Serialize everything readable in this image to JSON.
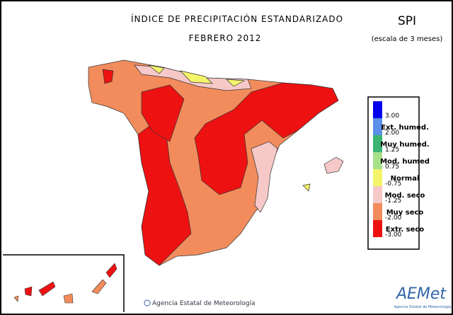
{
  "header": {
    "title": "ÍNDICE DE PRECIPITACIÓN ESTANDARIZADO",
    "subtitle": "FEBRERO 2012",
    "index": "SPI",
    "scale": "(escala de 3 meses)"
  },
  "legend": {
    "colors": [
      "#0000ee",
      "#5b8fe8",
      "#3cb371",
      "#a8e08a",
      "#f4f46a",
      "#f6c8c8",
      "#f28c5c",
      "#ee1111"
    ],
    "class_labels": [
      null,
      "Ext. humed.",
      "Muy humed.",
      "Mod. humed",
      "Normal",
      "Mod. seco",
      "Muy seco",
      "Extr. seco"
    ],
    "thresholds": [
      "3.00",
      "2.00",
      "1.25",
      "0.75",
      "-0.75",
      "-1.25",
      "-2.00",
      "-3.00"
    ]
  },
  "footer": {
    "credit": "Agencia Estatal de Meteorología",
    "logo": "AEMet",
    "logo_caption": "Agencia Estatal de Meteorología"
  }
}
